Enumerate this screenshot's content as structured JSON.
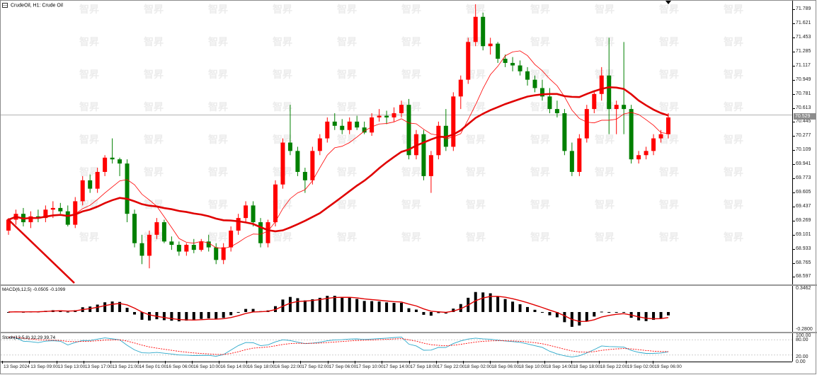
{
  "chart_title": "CrudeOil, H1:  Crude Oil",
  "watermark": "智昇",
  "current_price": "70.529",
  "macd_label": "MACD(6,12,5) -0.0505 -0.1099",
  "stoch_label": "Stoch(13,5,8) 32.29 39.74",
  "colors": {
    "bull": "#ff0000",
    "bear": "#008000",
    "ma_fast": "#ff0000",
    "ma_slow": "#e00000",
    "stoch_main": "#2aa7c9",
    "stoch_signal": "#ff0000"
  },
  "chart_data": [
    {
      "type": "candlestick",
      "symbol": "CrudeOil",
      "timeframe": "H1",
      "ylim": [
        68.55,
        71.85
      ],
      "price_labels": [
        "71.789",
        "71.621",
        "71.453",
        "71.285",
        "71.117",
        "70.949",
        "70.781",
        "70.613",
        "70.445",
        "70.277",
        "70.109",
        "69.941",
        "69.773",
        "69.605",
        "69.437",
        "69.269",
        "69.101",
        "68.933",
        "68.765",
        "68.597"
      ],
      "time_labels": [
        "13 Sep 2024",
        "13 Sep 09:00",
        "13 Sep 13:00",
        "13 Sep 17:00",
        "13 Sep 21:00",
        "14 Sep 01:00",
        "16 Sep 06:00",
        "16 Sep 10:00",
        "16 Sep 14:00",
        "16 Sep 18:00",
        "16 Sep 22:00",
        "17 Sep 02:00",
        "17 Sep 06:00",
        "17 Sep 10:00",
        "17 Sep 14:00",
        "17 Sep 18:00",
        "17 Sep 22:00",
        "18 Sep 02:00",
        "18 Sep 06:00",
        "18 Sep 10:00",
        "18 Sep 14:00",
        "18 Sep 18:00",
        "18 Sep 22:00",
        "19 Sep 02:00",
        "19 Sep 06:00"
      ],
      "candles_ohlc": [
        [
          69.15,
          69.3,
          69.1,
          69.28
        ],
        [
          69.28,
          69.4,
          69.22,
          69.35
        ],
        [
          69.35,
          69.42,
          69.2,
          69.25
        ],
        [
          69.25,
          69.38,
          69.18,
          69.32
        ],
        [
          69.32,
          69.4,
          69.25,
          69.3
        ],
        [
          69.3,
          69.45,
          69.25,
          69.4
        ],
        [
          69.4,
          69.5,
          69.3,
          69.42
        ],
        [
          69.42,
          69.48,
          69.35,
          69.38
        ],
        [
          69.38,
          69.45,
          69.2,
          69.22
        ],
        [
          69.22,
          69.55,
          69.18,
          69.5
        ],
        [
          69.5,
          69.8,
          69.45,
          69.75
        ],
        [
          69.75,
          69.82,
          69.6,
          69.65
        ],
        [
          69.65,
          69.9,
          69.6,
          69.85
        ],
        [
          69.85,
          70.05,
          69.8,
          70.02
        ],
        [
          70.02,
          70.25,
          69.95,
          70.0
        ],
        [
          70.0,
          70.02,
          69.8,
          69.95
        ],
        [
          69.95,
          70.0,
          69.25,
          69.35
        ],
        [
          69.35,
          69.4,
          68.95,
          69.0
        ],
        [
          69.0,
          69.1,
          68.75,
          68.85
        ],
        [
          68.85,
          69.15,
          68.7,
          69.1
        ],
        [
          69.1,
          69.3,
          69.05,
          69.25
        ],
        [
          69.25,
          69.28,
          69.0,
          69.02
        ],
        [
          69.02,
          69.08,
          68.92,
          68.98
        ],
        [
          68.98,
          69.02,
          68.85,
          68.9
        ],
        [
          68.9,
          69.0,
          68.85,
          68.98
        ],
        [
          68.98,
          69.05,
          68.88,
          68.92
        ],
        [
          68.92,
          69.05,
          68.9,
          69.02
        ],
        [
          69.02,
          69.1,
          68.9,
          68.95
        ],
        [
          68.95,
          69.0,
          68.75,
          68.8
        ],
        [
          68.8,
          69.0,
          68.75,
          68.95
        ],
        [
          68.95,
          69.2,
          68.9,
          69.15
        ],
        [
          69.15,
          69.35,
          69.1,
          69.3
        ],
        [
          69.3,
          69.5,
          69.25,
          69.45
        ],
        [
          69.45,
          69.5,
          69.2,
          69.25
        ],
        [
          69.25,
          69.3,
          68.95,
          69.0
        ],
        [
          69.0,
          69.28,
          68.95,
          69.25
        ],
        [
          69.25,
          69.75,
          69.2,
          69.7
        ],
        [
          69.7,
          70.25,
          69.65,
          70.2
        ],
        [
          70.2,
          70.65,
          70.05,
          70.1
        ],
        [
          70.1,
          70.15,
          69.8,
          69.85
        ],
        [
          69.85,
          69.9,
          69.6,
          69.75
        ],
        [
          69.75,
          70.15,
          69.7,
          70.1
        ],
        [
          70.1,
          70.3,
          70.05,
          70.25
        ],
        [
          70.25,
          70.5,
          70.2,
          70.45
        ],
        [
          70.45,
          70.55,
          70.35,
          70.4
        ],
        [
          70.4,
          70.48,
          70.3,
          70.35
        ],
        [
          70.35,
          70.5,
          70.3,
          70.45
        ],
        [
          70.45,
          70.52,
          70.35,
          70.38
        ],
        [
          70.38,
          70.45,
          70.3,
          70.32
        ],
        [
          70.32,
          70.55,
          70.28,
          70.5
        ],
        [
          70.5,
          70.6,
          70.45,
          70.52
        ],
        [
          70.52,
          70.58,
          70.42,
          70.5
        ],
        [
          70.5,
          70.62,
          70.45,
          70.55
        ],
        [
          70.55,
          70.7,
          70.5,
          70.65
        ],
        [
          70.65,
          70.72,
          70.0,
          70.05
        ],
        [
          70.05,
          70.35,
          70.0,
          70.3
        ],
        [
          70.3,
          70.35,
          69.75,
          69.8
        ],
        [
          69.8,
          70.1,
          69.6,
          70.05
        ],
        [
          70.05,
          70.45,
          70.0,
          70.4
        ],
        [
          70.4,
          70.6,
          70.1,
          70.15
        ],
        [
          70.15,
          70.8,
          70.1,
          70.75
        ],
        [
          70.75,
          71.0,
          70.6,
          70.95
        ],
        [
          70.95,
          71.45,
          70.9,
          71.4
        ],
        [
          71.4,
          71.85,
          71.35,
          71.7
        ],
        [
          71.7,
          71.75,
          71.3,
          71.35
        ],
        [
          71.35,
          71.45,
          71.25,
          71.38
        ],
        [
          71.38,
          71.4,
          71.15,
          71.2
        ],
        [
          71.2,
          71.25,
          71.1,
          71.15
        ],
        [
          71.15,
          71.22,
          71.05,
          71.12
        ],
        [
          71.12,
          71.18,
          71.0,
          71.05
        ],
        [
          71.05,
          71.1,
          70.88,
          70.95
        ],
        [
          70.95,
          71.0,
          70.8,
          70.85
        ],
        [
          70.85,
          70.95,
          70.7,
          70.75
        ],
        [
          70.75,
          70.85,
          70.55,
          70.6
        ],
        [
          70.6,
          70.7,
          70.5,
          70.55
        ],
        [
          70.55,
          70.6,
          70.05,
          70.1
        ],
        [
          70.1,
          70.2,
          69.8,
          69.85
        ],
        [
          69.85,
          70.3,
          69.8,
          70.25
        ],
        [
          70.25,
          70.65,
          70.2,
          70.6
        ],
        [
          70.6,
          70.82,
          70.55,
          70.78
        ],
        [
          70.78,
          71.1,
          70.7,
          71.0
        ],
        [
          71.0,
          71.45,
          70.3,
          70.6
        ],
        [
          70.6,
          70.7,
          70.3,
          70.65
        ],
        [
          70.65,
          71.4,
          70.3,
          70.6
        ],
        [
          70.6,
          70.65,
          69.95,
          70.0
        ],
        [
          70.0,
          70.1,
          69.95,
          70.05
        ],
        [
          70.05,
          70.15,
          70.0,
          70.1
        ],
        [
          70.1,
          70.3,
          70.05,
          70.25
        ],
        [
          70.25,
          70.35,
          70.2,
          70.3
        ],
        [
          70.3,
          70.55,
          70.25,
          70.5
        ]
      ]
    },
    {
      "type": "macd_histogram",
      "label": "MACD(6,12,5) -0.0505 -0.1099",
      "ylim": [
        -0.28,
        0.3462
      ],
      "y_labels": [
        "0.3462",
        "-0.2800"
      ]
    },
    {
      "type": "stochastic",
      "label": "Stoch(13,5,8) 32.29 39.74",
      "ylim": [
        0,
        100
      ],
      "y_labels": [
        "100.00",
        "80.00",
        "20.00",
        "0.00"
      ]
    }
  ]
}
